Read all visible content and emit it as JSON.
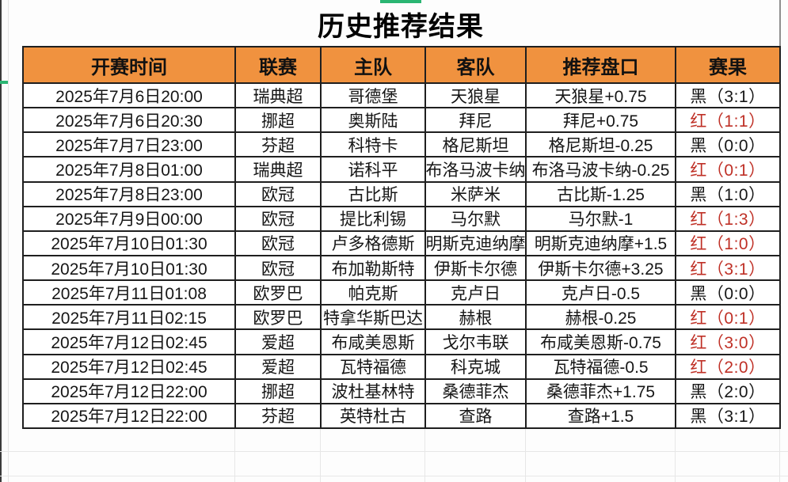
{
  "title": "历史推荐结果",
  "table": {
    "headers": [
      "开赛时间",
      "联赛",
      "主队",
      "客队",
      "推荐盘口",
      "赛果"
    ],
    "rows": [
      {
        "time": "2025年7月6日20:00",
        "league": "瑞典超",
        "home": "哥德堡",
        "away": "天狼星",
        "handicap": "天狼星+0.75",
        "result_text": "黑（3:1）",
        "result_status": "black"
      },
      {
        "time": "2025年7月6日20:30",
        "league": "挪超",
        "home": "奥斯陆",
        "away": "拜尼",
        "handicap": "拜尼+0.75",
        "result_text": "红（1:1）",
        "result_status": "red"
      },
      {
        "time": "2025年7月7日23:00",
        "league": "芬超",
        "home": "科特卡",
        "away": "格尼斯坦",
        "handicap": "格尼斯坦-0.25",
        "result_text": "黑（0:0）",
        "result_status": "black"
      },
      {
        "time": "2025年7月8日01:00",
        "league": "瑞典超",
        "home": "诺科平",
        "away": "布洛马波卡纳",
        "handicap": "布洛马波卡纳-0.25",
        "result_text": "红（0:1）",
        "result_status": "red"
      },
      {
        "time": "2025年7月8日23:00",
        "league": "欧冠",
        "home": "古比斯",
        "away": "米萨米",
        "handicap": "古比斯-1.25",
        "result_text": "黑（1:0）",
        "result_status": "black"
      },
      {
        "time": "2025年7月9日00:00",
        "league": "欧冠",
        "home": "提比利锡",
        "away": "马尔默",
        "handicap": "马尔默-1",
        "result_text": "红（1:3）",
        "result_status": "red"
      },
      {
        "time": "2025年7月10日01:30",
        "league": "欧冠",
        "home": "卢多格德斯",
        "away": "明斯克迪纳摩",
        "handicap": "明斯克迪纳摩+1.5",
        "result_text": "红（1:0）",
        "result_status": "red"
      },
      {
        "time": "2025年7月10日01:30",
        "league": "欧冠",
        "home": "布加勒斯特",
        "away": "伊斯卡尔德",
        "handicap": "伊斯卡尔德+3.25",
        "result_text": "红（3:1）",
        "result_status": "red"
      },
      {
        "time": "2025年7月11日01:08",
        "league": "欧罗巴",
        "home": "帕克斯",
        "away": "克卢日",
        "handicap": "克卢日-0.5",
        "result_text": "黑（0:0）",
        "result_status": "black"
      },
      {
        "time": "2025年7月11日02:15",
        "league": "欧罗巴",
        "home": "特拿华斯巴达",
        "away": "赫根",
        "handicap": "赫根-0.25",
        "result_text": "红（0:1）",
        "result_status": "red"
      },
      {
        "time": "2025年7月12日02:45",
        "league": "爱超",
        "home": "布咸美恩斯",
        "away": "戈尔韦联",
        "handicap": "布咸美恩斯-0.75",
        "result_text": "红（3:0）",
        "result_status": "red"
      },
      {
        "time": "2025年7月12日02:45",
        "league": "爱超",
        "home": "瓦特福德",
        "away": "科克城",
        "handicap": "瓦特福德-0.5",
        "result_text": "红（2:0）",
        "result_status": "red"
      },
      {
        "time": "2025年7月12日22:00",
        "league": "挪超",
        "home": "波杜基林特",
        "away": "桑德菲杰",
        "handicap": "桑德菲杰+1.75",
        "result_text": "黑（2:0）",
        "result_status": "black"
      },
      {
        "time": "2025年7月12日22:00",
        "league": "芬超",
        "home": "英特杜古",
        "away": "查路",
        "handicap": "查路+1.5",
        "result_text": "黑（3:1）",
        "result_status": "black"
      }
    ]
  },
  "colors": {
    "header_bg": "#F0923F",
    "red_result": "#BF3026",
    "black_result": "#161616",
    "selection_accent": "#2BB673",
    "border_dark": "#1F1F1F",
    "grid_light": "#E7E7E7"
  }
}
